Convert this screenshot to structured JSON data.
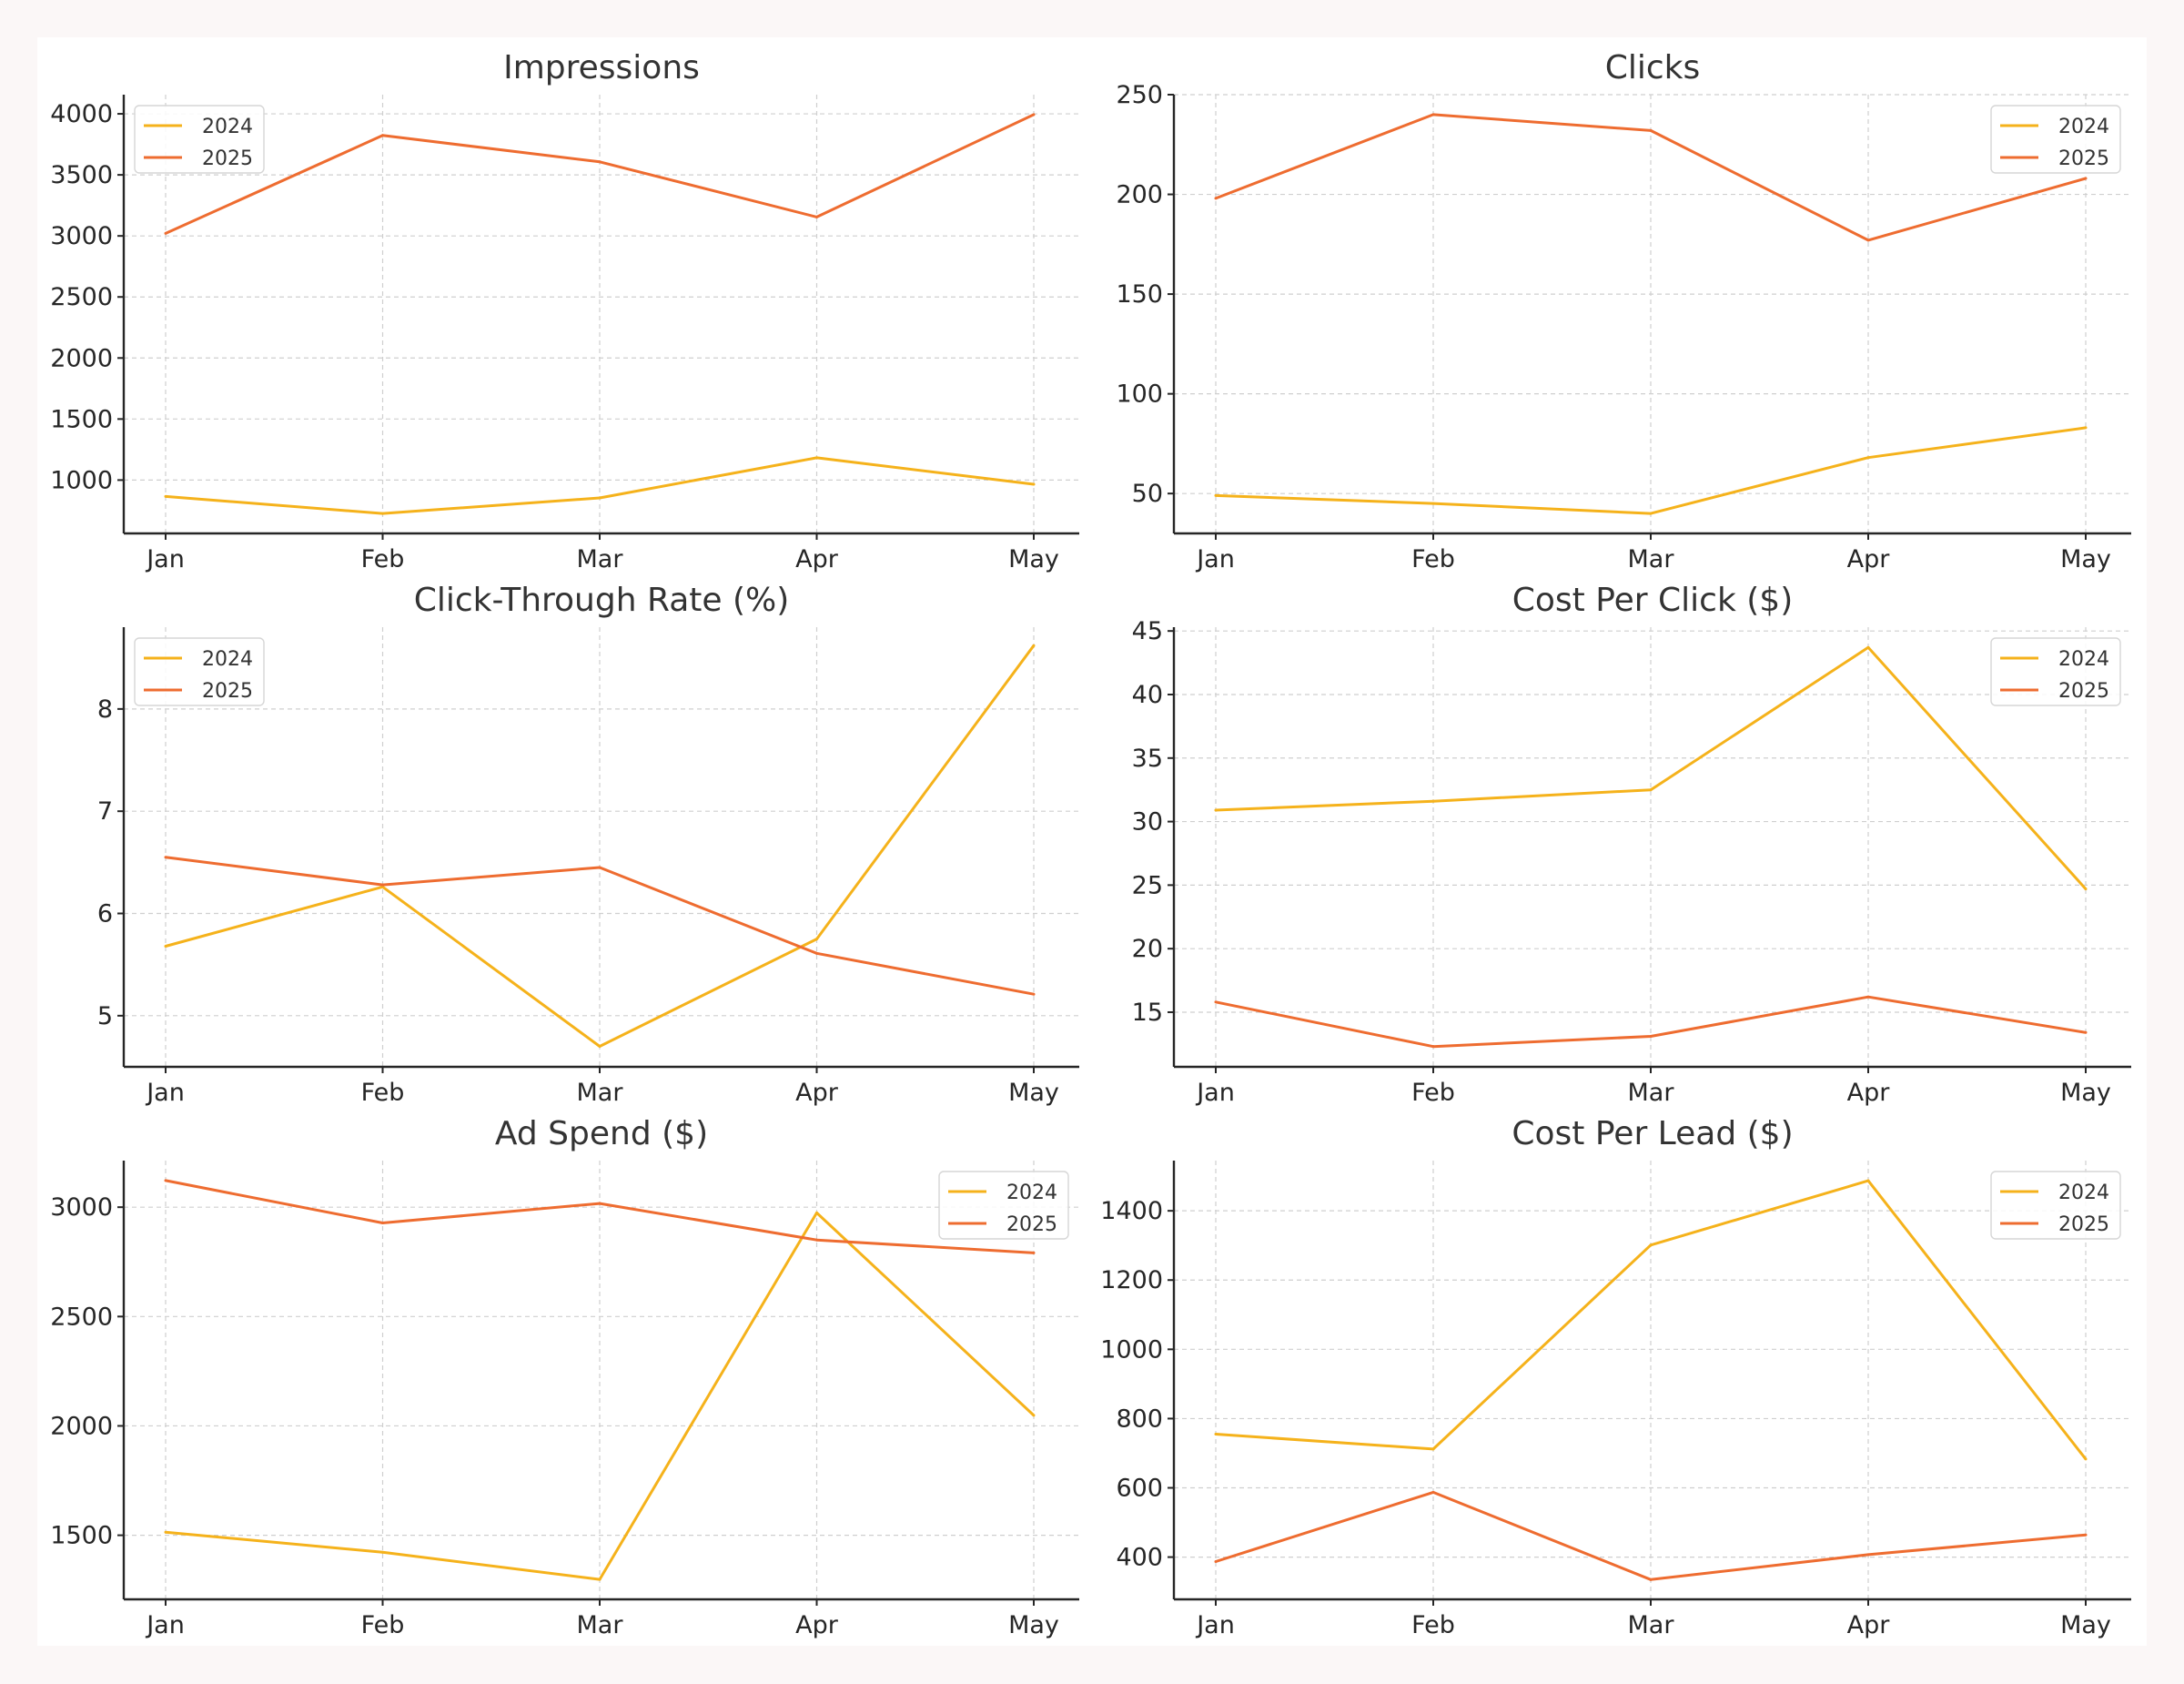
{
  "figure": {
    "colors": {
      "2024": "#F5B21B",
      "2025": "#EE6C30"
    }
  },
  "chart_data": [
    {
      "type": "line",
      "title": "Impressions",
      "xlabel": "",
      "ylabel": "",
      "categories": [
        "Jan",
        "Feb",
        "Mar",
        "Apr",
        "May"
      ],
      "series": [
        {
          "name": "2024",
          "values": [
            866,
            726,
            854,
            1183,
            966
          ]
        },
        {
          "name": "2025",
          "values": [
            3021,
            3823,
            3607,
            3155,
            3994
          ]
        }
      ],
      "yticks": [
        1000,
        1500,
        2000,
        2500,
        3000,
        3500,
        4000
      ],
      "ylim": [
        563,
        4157
      ],
      "grid": true,
      "legend": "upper-left"
    },
    {
      "type": "line",
      "title": "Clicks",
      "xlabel": "",
      "ylabel": "",
      "categories": [
        "Jan",
        "Feb",
        "Mar",
        "Apr",
        "May"
      ],
      "series": [
        {
          "name": "2024",
          "values": [
            49,
            45,
            40,
            68,
            83
          ]
        },
        {
          "name": "2025",
          "values": [
            198,
            240,
            232,
            177,
            208
          ]
        }
      ],
      "yticks": [
        50,
        100,
        150,
        200,
        250
      ],
      "ylim": [
        30,
        250
      ],
      "grid": true,
      "legend": "upper-right"
    },
    {
      "type": "line",
      "title": "Click-Through Rate (%)",
      "xlabel": "",
      "ylabel": "",
      "categories": [
        "Jan",
        "Feb",
        "Mar",
        "Apr",
        "May"
      ],
      "series": [
        {
          "name": "2024",
          "values": [
            5.68,
            6.26,
            4.7,
            5.75,
            8.62
          ]
        },
        {
          "name": "2025",
          "values": [
            6.55,
            6.28,
            6.45,
            5.61,
            5.21
          ]
        }
      ],
      "yticks": [
        5,
        6,
        7,
        8
      ],
      "ylim": [
        4.5,
        8.8
      ],
      "grid": true,
      "legend": "upper-left"
    },
    {
      "type": "line",
      "title": "Cost Per Click ($)",
      "xlabel": "",
      "ylabel": "",
      "categories": [
        "Jan",
        "Feb",
        "Mar",
        "Apr",
        "May"
      ],
      "series": [
        {
          "name": "2024",
          "values": [
            30.9,
            31.6,
            32.5,
            43.7,
            24.7
          ]
        },
        {
          "name": "2025",
          "values": [
            15.8,
            12.3,
            13.1,
            16.2,
            13.4
          ]
        }
      ],
      "yticks": [
        15,
        20,
        25,
        30,
        35,
        40,
        45
      ],
      "ylim": [
        10.7,
        45.3
      ],
      "grid": true,
      "legend": "upper-right"
    },
    {
      "type": "line",
      "title": "Ad Spend ($)",
      "xlabel": "",
      "ylabel": "",
      "categories": [
        "Jan",
        "Feb",
        "Mar",
        "Apr",
        "May"
      ],
      "series": [
        {
          "name": "2024",
          "values": [
            1514,
            1422,
            1298,
            2974,
            2048
          ]
        },
        {
          "name": "2025",
          "values": [
            3122,
            2928,
            3017,
            2850,
            2791
          ]
        }
      ],
      "yticks": [
        1500,
        2000,
        2500,
        3000
      ],
      "ylim": [
        1207,
        3213
      ],
      "grid": true,
      "legend": "upper-right"
    },
    {
      "type": "line",
      "title": "Cost Per Lead ($)",
      "xlabel": "",
      "ylabel": "",
      "categories": [
        "Jan",
        "Feb",
        "Mar",
        "Apr",
        "May"
      ],
      "series": [
        {
          "name": "2024",
          "values": [
            755,
            712,
            1301,
            1487,
            683
          ]
        },
        {
          "name": "2025",
          "values": [
            387,
            587,
            335,
            407,
            464
          ]
        }
      ],
      "yticks": [
        400,
        600,
        800,
        1000,
        1200,
        1400
      ],
      "ylim": [
        278,
        1545
      ],
      "grid": true,
      "legend": "upper-right"
    }
  ]
}
